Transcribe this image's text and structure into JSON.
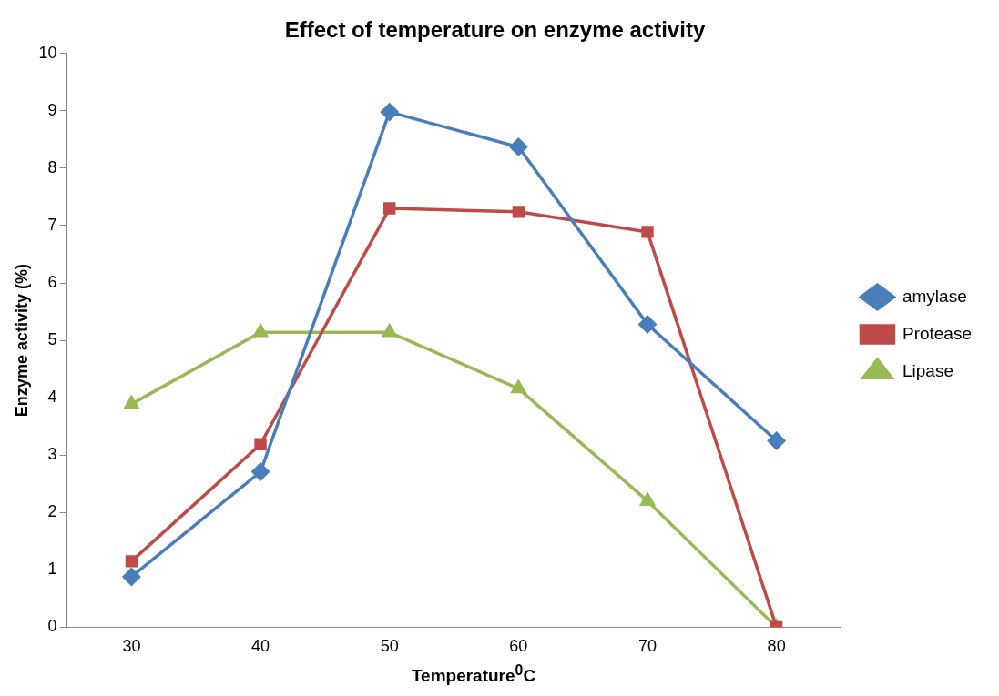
{
  "chart_data": {
    "type": "line",
    "title": "Effect of temperature on enzyme activity",
    "xlabel": "Temperature$^{0}$C",
    "ylabel": "Enzyme activity (%)",
    "categories": [
      "30",
      "40",
      "50",
      "60",
      "70",
      "80"
    ],
    "series": [
      {
        "name": "amylase",
        "color": "#4a7ebb",
        "marker": "diamond",
        "values": [
          0.88,
          2.71,
          8.98,
          8.37,
          5.28,
          3.25
        ]
      },
      {
        "name": "Protease",
        "color": "#be4b48",
        "marker": "square",
        "values": [
          1.15,
          3.19,
          7.3,
          7.24,
          6.89,
          0
        ]
      },
      {
        "name": "Lipase",
        "color": "#98b954",
        "marker": "triangle",
        "values": [
          3.89,
          5.14,
          5.14,
          4.16,
          2.2,
          0
        ]
      }
    ],
    "ylim": [
      0,
      10
    ],
    "yticks": [
      0,
      1,
      2,
      3,
      4,
      5,
      6,
      7,
      8,
      9,
      10
    ],
    "grid": false,
    "legend": "right"
  }
}
